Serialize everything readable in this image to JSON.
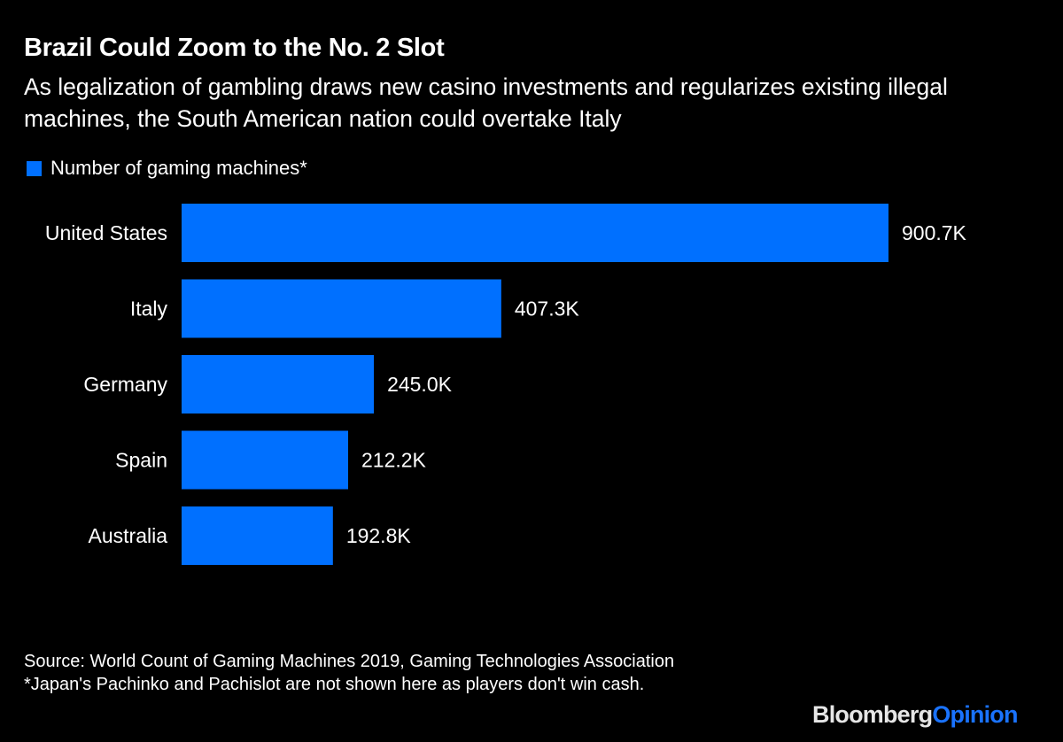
{
  "header": {
    "title": "Brazil Could Zoom to the No. 2 Slot",
    "subtitle": "As legalization of gambling draws new casino investments and regularizes existing illegal machines, the South American nation could overtake Italy"
  },
  "colors": {
    "background": "#000000",
    "bar": "#0070ff",
    "text": "#ffffff",
    "brand_primary": "#e6e6e6",
    "brand_accent": "#1a73ff"
  },
  "chart_data": {
    "type": "bar",
    "orientation": "horizontal",
    "title": "Brazil Could Zoom to the No. 2 Slot",
    "subtitle": "As legalization of gambling draws new casino investments and regularizes existing illegal machines, the South American nation could overtake Italy",
    "xlabel": "",
    "ylabel": "",
    "grid": false,
    "legend_position": "top-left",
    "xlim": [
      0,
      900.7
    ],
    "categories": [
      "United States",
      "Italy",
      "Germany",
      "Spain",
      "Australia"
    ],
    "series": [
      {
        "name": "Number of gaming machines*",
        "unit": "thousands",
        "values": [
          900.7,
          407.3,
          245.0,
          212.2,
          192.8
        ],
        "labels": [
          "900.7K",
          "407.3K",
          "245.0K",
          "212.2K",
          "192.8K"
        ]
      }
    ]
  },
  "footer": {
    "source": "Source: World Count of Gaming Machines 2019, Gaming Technologies Association",
    "note": "*Japan's Pachinko and Pachislot are not shown here as players don't win cash."
  },
  "brand": {
    "part1": "Bloomberg",
    "part2": "Opinion"
  }
}
